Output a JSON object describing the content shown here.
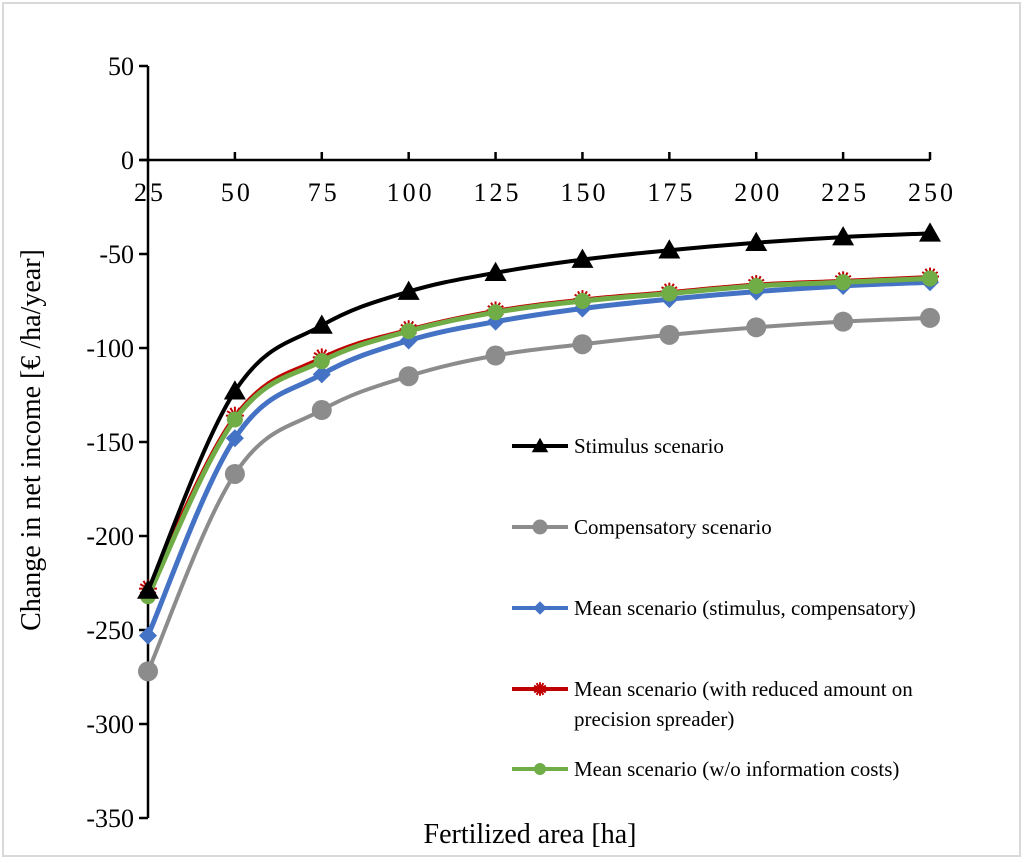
{
  "chart_data": {
    "type": "line",
    "title": "",
    "xlabel": "Fertilized area [ha]",
    "ylabel": "Change in net income [€ /ha/year]",
    "x": [
      25,
      50,
      75,
      100,
      125,
      150,
      175,
      200,
      225,
      250
    ],
    "x_tick_labels": [
      "25",
      "50",
      "75",
      "100",
      "125",
      "150",
      "175",
      "200",
      "225",
      "250"
    ],
    "y_ticks": [
      50,
      0,
      -50,
      -100,
      -150,
      -200,
      -250,
      -300,
      -350
    ],
    "y_tick_labels": [
      "50",
      "0",
      "-50",
      "-100",
      "-150",
      "-200",
      "-250",
      "-300",
      "-350"
    ],
    "xlim": [
      25,
      250
    ],
    "ylim": [
      -350,
      50
    ],
    "x_axis_position": "y=0",
    "grid": false,
    "legend_position": "right-center (inside plot)",
    "series": [
      {
        "name": "Stimulus scenario",
        "color": "#000000",
        "marker": "triangle",
        "values": [
          -229,
          -123,
          -88,
          -70,
          -60,
          -53,
          -48,
          -44,
          -41,
          -39
        ]
      },
      {
        "name": "Compensatory scenario",
        "color": "#8c8c8c",
        "marker": "circle",
        "values": [
          -272,
          -167,
          -133,
          -115,
          -104,
          -98,
          -93,
          -89,
          -86,
          -84
        ]
      },
      {
        "name": "Mean scenario (stimulus, compensatory)",
        "color": "#4472c4",
        "marker": "diamond",
        "values": [
          -253,
          -148,
          -114,
          -96,
          -86,
          -79,
          -74,
          -70,
          -67,
          -65
        ]
      },
      {
        "name": "Mean scenario (with reduced amount on precision spreader)",
        "legend_lines": [
          "Mean scenario (with reduced amount on",
          "precision spreader)"
        ],
        "color": "#c00000",
        "marker": "star",
        "values": [
          -228,
          -136,
          -105,
          -90,
          -80,
          -74,
          -70,
          -66,
          -64,
          -62
        ]
      },
      {
        "name": "Mean scenario (w/o information costs)",
        "color": "#70ad47",
        "marker": "circle",
        "values": [
          -232,
          -138,
          -107,
          -91,
          -81,
          -75,
          -71,
          -67,
          -65,
          -63
        ]
      }
    ]
  }
}
